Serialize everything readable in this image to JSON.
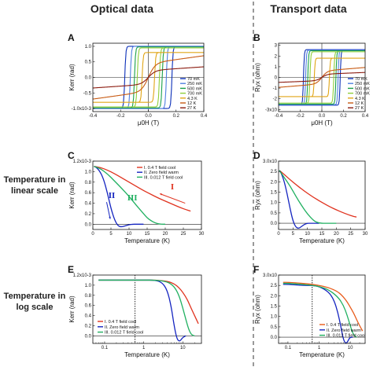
{
  "headers": {
    "optical": "Optical data",
    "transport": "Transport data"
  },
  "row_labels": {
    "linear": [
      "Temperature in",
      "linear scale"
    ],
    "log": [
      "Temperature in",
      "log scale"
    ]
  },
  "colors": {
    "70mK": "#0b2fb8",
    "250mK": "#4f7fe0",
    "500mK": "#19a04a",
    "700mK": "#8fcf3a",
    "4.3K": "#e0a516",
    "12K": "#c85a12",
    "27K": "#8b1a0e",
    "fc04": "#e0321e",
    "zfw": "#1424c0",
    "fc0012": "#20b060",
    "fc04_log": "#e85b1a"
  },
  "chart_data": [
    {
      "panel": "A",
      "type": "line",
      "xlabel": "μ0H (T)",
      "ylabel": "Kerr (rad)",
      "xlim": [
        -0.4,
        0.4
      ],
      "ylim": [
        -0.0011,
        0.0011
      ],
      "xticks": [
        "-0.4",
        "-0.2",
        "0.0",
        "0.2",
        "0.4"
      ],
      "yticks": [
        "1.0",
        "0.5",
        "0.0",
        "-0.5",
        "-1.0x10-3"
      ],
      "legend": [
        "70 mK",
        "250 mK",
        "500 mK",
        "700 mK",
        "4.3 K",
        "12 K",
        "27 K"
      ],
      "series": [
        {
          "name": "70 mK",
          "kind": "loop",
          "hc": 0.17,
          "sat": 0.001
        },
        {
          "name": "250 mK",
          "kind": "loop",
          "hc": 0.13,
          "sat": 0.001
        },
        {
          "name": "500 mK",
          "kind": "loop",
          "hc": 0.1,
          "sat": 0.00098
        },
        {
          "name": "700 mK",
          "kind": "loop",
          "hc": 0.08,
          "sat": 0.00095
        },
        {
          "name": "4.3 K",
          "kind": "loop",
          "hc": 0.045,
          "sat": 0.0008
        },
        {
          "name": "12 K",
          "kind": "para",
          "sat": 0.00045
        },
        {
          "name": "27 K",
          "kind": "para",
          "sat": 0.00022
        }
      ]
    },
    {
      "panel": "B",
      "type": "line",
      "xlabel": "μ0H (T)",
      "ylabel": "Ryx (ohm)",
      "xlim": [
        -0.4,
        0.4
      ],
      "ylim": [
        -32000.0,
        32000.0
      ],
      "xticks": [
        "-0.4",
        "-0.2",
        "0.0",
        "0.2",
        "0.4"
      ],
      "yticks": [
        "3",
        "2",
        "1",
        "0",
        "-1",
        "-2",
        "-3x10"
      ],
      "legend": [
        "70 mK",
        "250 mK",
        "500 mK",
        "700 mK",
        "4.3 K",
        "12 K",
        "27 K"
      ],
      "series": [
        {
          "name": "70 mK",
          "kind": "loop",
          "hc": 0.17,
          "sat": 26000.0
        },
        {
          "name": "250 mK",
          "kind": "loop",
          "hc": 0.15,
          "sat": 25500.0
        },
        {
          "name": "500 mK",
          "kind": "loop",
          "hc": 0.13,
          "sat": 25000.0
        },
        {
          "name": "700 mK",
          "kind": "loop",
          "hc": 0.11,
          "sat": 24000.0
        },
        {
          "name": "4.3 K",
          "kind": "loop",
          "hc": 0.07,
          "sat": 18000.0
        },
        {
          "name": "12 K",
          "kind": "para",
          "sat": 6000.0
        },
        {
          "name": "27 K",
          "kind": "para",
          "sat": 3000.0
        }
      ]
    },
    {
      "panel": "C",
      "type": "line",
      "xlabel": "Temperature (K)",
      "ylabel": "Kerr (rad)",
      "xlim": [
        0,
        30
      ],
      "ylim": [
        -0.0001,
        0.0012
      ],
      "xticks": [
        "0",
        "5",
        "10",
        "15",
        "20",
        "25",
        "30"
      ],
      "yticks": [
        "1.2x10-3",
        "1.0",
        "0.8",
        "0.6",
        "0.4",
        "0.2",
        "0.0"
      ],
      "legend": [
        "I. 0.4 T field cool",
        "II. Zero field warm",
        "III. 0.012 T field cool"
      ],
      "annotations": [
        "I",
        "II",
        "III"
      ],
      "series": [
        {
          "name": "I. 0.4 T field cool",
          "x": [
            0.3,
            2,
            4,
            6,
            8,
            10,
            12,
            14,
            16,
            18,
            20,
            22,
            24,
            26,
            27
          ],
          "y": [
            0.0011,
            0.00108,
            0.00103,
            0.00096,
            0.00088,
            0.0008,
            0.00072,
            0.00064,
            0.00057,
            0.0005,
            0.00044,
            0.00038,
            0.00032,
            0.00027,
            0.00025
          ]
        },
        {
          "name": "II. Zero field warm",
          "x": [
            0.3,
            1,
            2,
            3,
            4,
            5,
            6,
            7,
            8,
            9,
            10,
            11,
            12,
            14
          ],
          "y": [
            0.0011,
            0.00108,
            0.001,
            0.00085,
            0.0006,
            0.0003,
            8e-05,
            -4e-05,
            -5e-05,
            -3e-05,
            -1e-05,
            0.0,
            0.0,
            0.0
          ]
        },
        {
          "name": "III. 0.012 T field cool",
          "x": [
            0.3,
            2,
            4,
            6,
            8,
            10,
            12,
            14,
            15,
            16,
            17,
            18,
            19,
            20
          ],
          "y": [
            0.0011,
            0.00106,
            0.00096,
            0.00082,
            0.00068,
            0.00053,
            0.00036,
            0.0002,
            0.00012,
            7e-05,
            3e-05,
            1e-05,
            0.0,
            0.0
          ]
        }
      ]
    },
    {
      "panel": "D",
      "type": "line",
      "xlabel": "Temperature (K)",
      "ylabel": "Ryx (ohm)",
      "xlim": [
        0,
        30
      ],
      "ylim": [
        -3000.0,
        30000.0
      ],
      "xticks": [
        "0",
        "5",
        "10",
        "15",
        "20",
        "25",
        "30"
      ],
      "yticks": [
        "3.0x10",
        "2.5",
        "2.0",
        "1.5",
        "1.0",
        "0.5",
        "0.0"
      ],
      "legend": [],
      "series": [
        {
          "name": "I. 0.4 T field cool",
          "x": [
            0.3,
            2,
            4,
            6,
            8,
            10,
            12,
            14,
            16,
            18,
            20,
            22,
            24,
            26,
            27
          ],
          "y": [
            25500.0,
            23500.0,
            21000.0,
            18700.0,
            16500.0,
            14500.0,
            12600.0,
            10900.0,
            9300.0,
            7800.0,
            6500.0,
            5300.0,
            4200.0,
            3300.0,
            3000.0
          ]
        },
        {
          "name": "II. Zero field warm",
          "x": [
            0.3,
            1,
            2,
            3,
            4,
            5,
            6,
            7,
            8,
            9,
            10,
            11,
            12,
            14
          ],
          "y": [
            25500.0,
            24000.0,
            20000.0,
            14000.0,
            7000.0,
            1000.0,
            -2000.0,
            -2500.0,
            -1500.0,
            -500.0,
            0.0,
            0.0,
            0.0,
            0.0
          ]
        },
        {
          "name": "III. 0.012 T field cool",
          "x": [
            0.3,
            2,
            4,
            6,
            8,
            10,
            12,
            13,
            14,
            15,
            16,
            18,
            20
          ],
          "y": [
            25500.0,
            22000.0,
            18000.0,
            13000.0,
            8500.0,
            4500.0,
            1500.0,
            600.0,
            200.0,
            0.0,
            0.0,
            0.0,
            0.0
          ]
        }
      ]
    },
    {
      "panel": "E",
      "type": "line",
      "xscale": "log",
      "xlabel": "Temperature (K)",
      "ylabel": "Kerr (rad)",
      "xlim": [
        0.05,
        30
      ],
      "ylim": [
        -0.00015,
        0.0012
      ],
      "xticks": [
        "0.1",
        "1",
        "10"
      ],
      "yticks": [
        "1.2x10-3",
        "1.0",
        "0.8",
        "0.6",
        "0.4",
        "0.2",
        "0.0"
      ],
      "legend": [
        "I. 0.4 T field cool",
        "II. Zero field warm",
        "III. 0.012 T field cool"
      ],
      "vline": 0.6,
      "series": [
        {
          "name": "I. 0.4 T field cool",
          "x": [
            0.07,
            0.1,
            0.3,
            1,
            2,
            4,
            6,
            8,
            10,
            13,
            16,
            20,
            25
          ],
          "y": [
            0.0011,
            0.0011,
            0.0011,
            0.0011,
            0.0011,
            0.00108,
            0.00103,
            0.00095,
            0.00086,
            0.00072,
            0.00056,
            0.0004,
            0.00024
          ]
        },
        {
          "name": "II. Zero field warm",
          "x": [
            0.07,
            0.1,
            0.3,
            1,
            2,
            3,
            4,
            5,
            6,
            7,
            8,
            9,
            10,
            12
          ],
          "y": [
            0.0011,
            0.0011,
            0.0011,
            0.0011,
            0.0011,
            0.00105,
            0.0009,
            0.0006,
            0.0002,
            -5e-05,
            -0.00011,
            -8e-05,
            -3e-05,
            0.0
          ]
        },
        {
          "name": "III. 0.012 T field cool",
          "x": [
            0.07,
            0.1,
            0.3,
            1,
            2,
            4,
            6,
            8,
            10,
            12,
            14,
            16,
            18,
            20
          ],
          "y": [
            0.0011,
            0.0011,
            0.0011,
            0.0011,
            0.0011,
            0.00107,
            0.00098,
            0.0008,
            0.00055,
            0.00032,
            0.00014,
            4e-05,
            1e-05,
            0.0
          ]
        }
      ]
    },
    {
      "panel": "F",
      "type": "line",
      "xscale": "log",
      "xlabel": "Temperature (K)",
      "ylabel": "Ryx (ohm)",
      "xlim": [
        0.05,
        30
      ],
      "ylim": [
        -3000.0,
        30000.0
      ],
      "xticks": [
        "0.1",
        "1",
        "10"
      ],
      "yticks": [
        "3.0x10",
        "2.5",
        "2.0",
        "1.5",
        "1.0",
        "0.5",
        "0.0"
      ],
      "legend": [
        "I. 0.4 T field cool",
        "II. Zero field warm",
        "III. 0.012 T field cool"
      ],
      "vline": 0.6,
      "series": [
        {
          "name": "I. 0.4 T field cool",
          "x": [
            0.07,
            0.1,
            0.3,
            0.6,
            1,
            2,
            4,
            6,
            8,
            10,
            13,
            16,
            20,
            25
          ],
          "y": [
            26500.0,
            26500.0,
            26000.0,
            25500.0,
            25000.0,
            24000.0,
            22000.0,
            19500.0,
            17000.0,
            14500.0,
            11500.0,
            8500.0,
            5500.0,
            3000.0
          ]
        },
        {
          "name": "II. Zero field warm",
          "x": [
            0.07,
            0.1,
            0.3,
            0.6,
            1,
            2,
            3,
            4,
            5,
            6,
            7,
            8,
            9,
            10,
            12
          ],
          "y": [
            25500.0,
            25500.0,
            25000.0,
            25000.0,
            24500.0,
            22000.0,
            18000.0,
            12000.0,
            5000.0,
            -1000.0,
            -3000.0,
            -2500.0,
            -1000.0,
            0.0,
            0.0
          ]
        },
        {
          "name": "III. 0.012 T field cool",
          "x": [
            0.07,
            0.1,
            0.3,
            0.6,
            1,
            2,
            4,
            6,
            8,
            10,
            12,
            14,
            16
          ],
          "y": [
            26000.0,
            26000.0,
            25500.0,
            25000.0,
            24500.0,
            23000.0,
            19500.0,
            15500.0,
            10500.0,
            5500.0,
            2000.0,
            500.0,
            0.0
          ]
        }
      ]
    }
  ]
}
